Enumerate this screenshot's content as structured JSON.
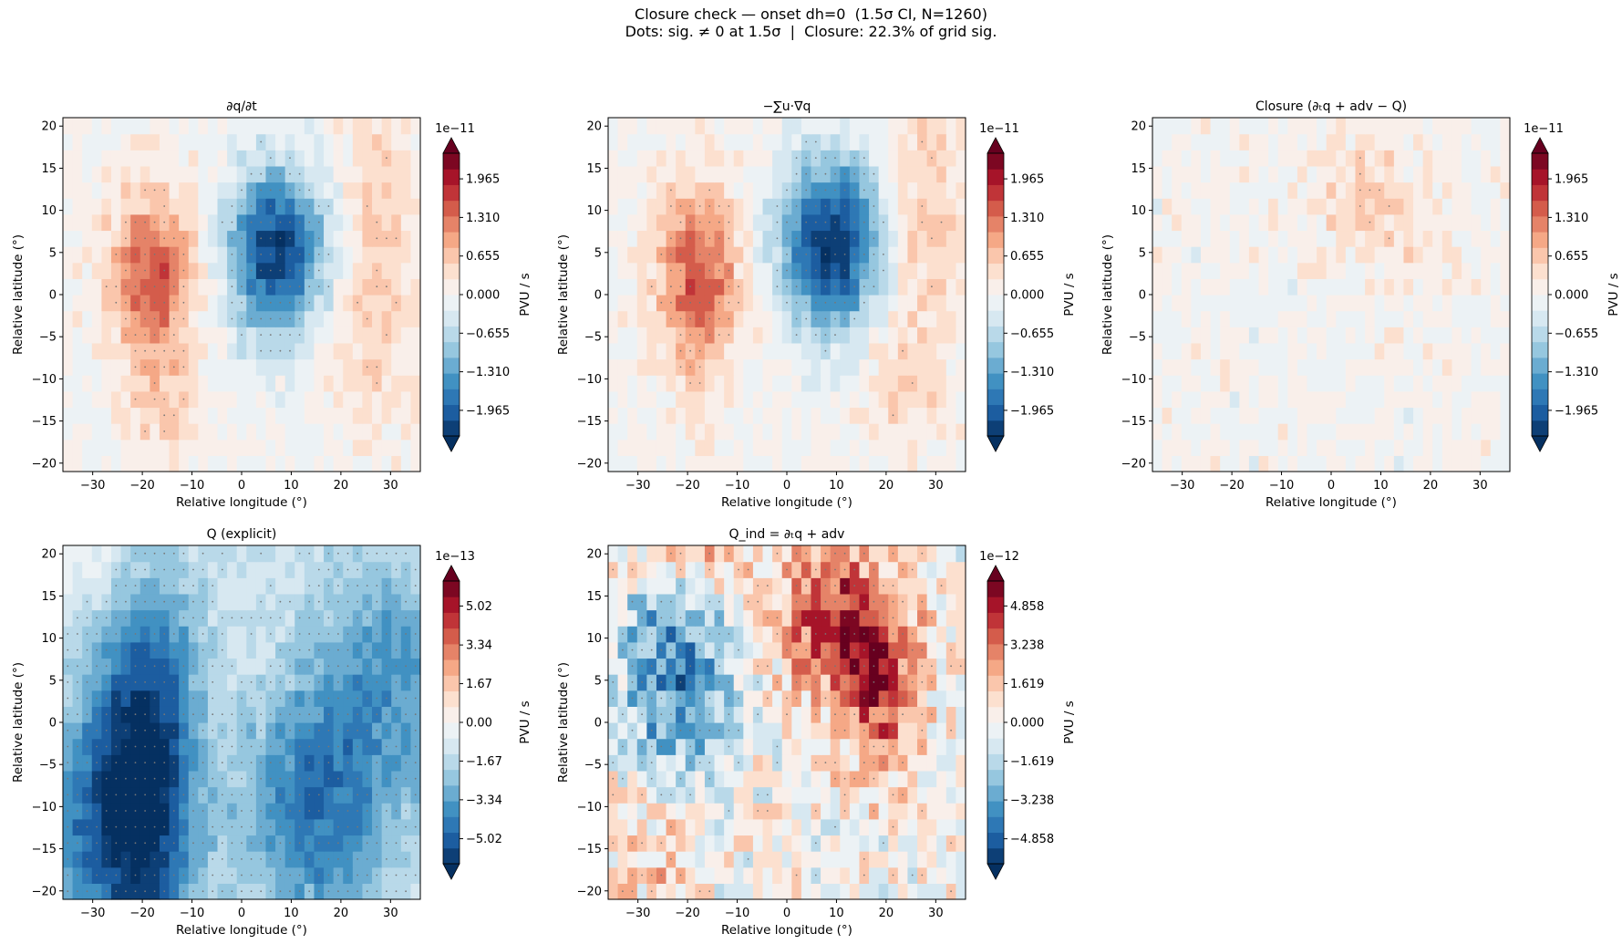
{
  "figure": {
    "title_line1": "Closure check — onset dh=0  (1.5σ CI, N=1260)",
    "title_line2": "Dots: sig. ≠ 0 at 1.5σ  |  Closure: 22.3% of grid sig."
  },
  "colormap": {
    "name": "RdBu_r",
    "stops": [
      "#053061",
      "#2166ac",
      "#4393c3",
      "#92c5de",
      "#d1e5f0",
      "#f7f7f7",
      "#fddbc7",
      "#f4a582",
      "#d6604d",
      "#b2182b",
      "#67001f"
    ]
  },
  "chart_data": [
    {
      "type": "heatmap",
      "title": "∂q/∂t",
      "xlabel": "Relative longitude (°)",
      "ylabel": "Relative latitude (°)",
      "xlim": [
        -36,
        36
      ],
      "ylim": [
        -21,
        21
      ],
      "xticks": [
        -30,
        -20,
        -10,
        0,
        10,
        20,
        30
      ],
      "yticks": [
        -20,
        -15,
        -10,
        -5,
        0,
        5,
        10,
        15,
        20
      ],
      "colorbar": {
        "label": "PVU / s",
        "scale_label": "1e−11",
        "vmin": -2.4,
        "vmax": 2.4,
        "ticks": [
          1.965,
          1.31,
          0.655,
          0.0,
          -0.655,
          -1.31,
          -1.965
        ],
        "tick_labels": [
          "1.965",
          "1.310",
          "0.655",
          "0.000",
          "−0.655",
          "−1.310",
          "−1.965"
        ],
        "extend": "both"
      },
      "features": [
        {
          "kind": "positive",
          "lon": -18,
          "lat": 2,
          "slon": 6,
          "slat": 7,
          "amp": 1.6
        },
        {
          "kind": "negative",
          "lon": 7,
          "lat": 5,
          "slon": 7,
          "slat": 7,
          "amp": -2.3
        },
        {
          "kind": "positive",
          "lon": 28,
          "lat": 8,
          "slon": 6,
          "slat": 10,
          "amp": 0.6
        },
        {
          "kind": "positive",
          "lon": -15,
          "lat": -14,
          "slon": 5,
          "slat": 5,
          "amp": 0.5
        },
        {
          "kind": "positive",
          "lon": 24,
          "lat": -8,
          "slon": 6,
          "slat": 6,
          "amp": 0.4
        }
      ],
      "noise": 0.25
    },
    {
      "type": "heatmap",
      "title": "−∑u·∇q",
      "xlabel": "Relative longitude (°)",
      "ylabel": "Relative latitude (°)",
      "xlim": [
        -36,
        36
      ],
      "ylim": [
        -21,
        21
      ],
      "xticks": [
        -30,
        -20,
        -10,
        0,
        10,
        20,
        30
      ],
      "yticks": [
        -20,
        -15,
        -10,
        -5,
        0,
        5,
        10,
        15,
        20
      ],
      "colorbar": {
        "label": "PVU / s",
        "scale_label": "1e−11",
        "vmin": -2.4,
        "vmax": 2.4,
        "ticks": [
          1.965,
          1.31,
          0.655,
          0.0,
          -0.655,
          -1.31,
          -1.965
        ],
        "tick_labels": [
          "1.965",
          "1.310",
          "0.655",
          "0.000",
          "−0.655",
          "−1.310",
          "−1.965"
        ],
        "extend": "both"
      },
      "features": [
        {
          "kind": "positive",
          "lon": -18,
          "lat": 2,
          "slon": 6,
          "slat": 8,
          "amp": 1.5
        },
        {
          "kind": "negative",
          "lon": 9,
          "lat": 6,
          "slon": 7,
          "slat": 7,
          "amp": -2.5
        },
        {
          "kind": "positive",
          "lon": 28,
          "lat": 10,
          "slon": 6,
          "slat": 9,
          "amp": 0.6
        },
        {
          "kind": "positive",
          "lon": 24,
          "lat": -10,
          "slon": 6,
          "slat": 6,
          "amp": 0.5
        }
      ],
      "noise": 0.25
    },
    {
      "type": "heatmap",
      "title": "Closure (∂ₜq + adv − Q)",
      "xlabel": "Relative longitude (°)",
      "ylabel": "Relative latitude (°)",
      "xlim": [
        -36,
        36
      ],
      "ylim": [
        -21,
        21
      ],
      "xticks": [
        -30,
        -20,
        -10,
        0,
        10,
        20,
        30
      ],
      "yticks": [
        -20,
        -15,
        -10,
        -5,
        0,
        5,
        10,
        15,
        20
      ],
      "colorbar": {
        "label": "PVU / s",
        "scale_label": "1e−11",
        "vmin": -2.4,
        "vmax": 2.4,
        "ticks": [
          1.965,
          1.31,
          0.655,
          0.0,
          -0.655,
          -1.31,
          -1.965
        ],
        "tick_labels": [
          "1.965",
          "1.310",
          "0.655",
          "0.000",
          "−0.655",
          "−1.310",
          "−1.965"
        ],
        "extend": "both"
      },
      "features": [
        {
          "kind": "positive",
          "lon": 5,
          "lat": 13,
          "slon": 8,
          "slat": 5,
          "amp": 0.4
        },
        {
          "kind": "positive",
          "lon": 15,
          "lat": 6,
          "slon": 8,
          "slat": 6,
          "amp": 0.25
        }
      ],
      "noise": 0.28
    },
    {
      "type": "heatmap",
      "title": "Q (explicit)",
      "xlabel": "Relative longitude (°)",
      "ylabel": "Relative latitude (°)",
      "xlim": [
        -36,
        36
      ],
      "ylim": [
        -21,
        21
      ],
      "xticks": [
        -30,
        -20,
        -10,
        0,
        10,
        20,
        30
      ],
      "yticks": [
        -20,
        -15,
        -10,
        -5,
        0,
        5,
        10,
        15,
        20
      ],
      "colorbar": {
        "label": "PVU / s",
        "scale_label": "1e−13",
        "vmin": -6.1,
        "vmax": 6.1,
        "ticks": [
          5.02,
          3.34,
          1.67,
          0.0,
          -1.67,
          -3.34,
          -5.02
        ],
        "tick_labels": [
          "5.02",
          "3.34",
          "1.67",
          "0.00",
          "−1.67",
          "−3.34",
          "−5.02"
        ],
        "extend": "both"
      },
      "features": [
        {
          "kind": "negative",
          "lon": -19,
          "lat": -6,
          "slon": 7,
          "slat": 16,
          "amp": -5.2
        },
        {
          "kind": "negative",
          "lon": 15,
          "lat": -10,
          "slon": 10,
          "slat": 10,
          "amp": -3.3
        },
        {
          "kind": "negative",
          "lon": -30,
          "lat": -12,
          "slon": 8,
          "slat": 10,
          "amp": -2.6
        },
        {
          "kind": "negative",
          "lon": 30,
          "lat": 6,
          "slon": 10,
          "slat": 10,
          "amp": -2.2
        },
        {
          "kind": "positive",
          "lon": -30,
          "lat": 20,
          "slon": 10,
          "slat": 4,
          "amp": 1.2
        }
      ],
      "offset": -1.2,
      "noise": 0.55
    },
    {
      "type": "heatmap",
      "title": "Q_ind = ∂ₜq + adv",
      "xlabel": "Relative longitude (°)",
      "ylabel": "Relative latitude (°)",
      "xlim": [
        -36,
        36
      ],
      "ylim": [
        -21,
        21
      ],
      "xticks": [
        -30,
        -20,
        -10,
        0,
        10,
        20,
        30
      ],
      "yticks": [
        -20,
        -15,
        -10,
        -5,
        0,
        5,
        10,
        15,
        20
      ],
      "colorbar": {
        "label": "PVU / s",
        "scale_label": "1e−12",
        "vmin": -5.9,
        "vmax": 5.9,
        "ticks": [
          4.858,
          3.238,
          1.619,
          0.0,
          -1.619,
          -3.238,
          -4.858
        ],
        "tick_labels": [
          "4.858",
          "3.238",
          "1.619",
          "0.000",
          "−1.619",
          "−3.238",
          "−4.858"
        ],
        "extend": "both"
      },
      "features": [
        {
          "kind": "negative",
          "lon": -22,
          "lat": 5,
          "slon": 8,
          "slat": 10,
          "amp": -3.8
        },
        {
          "kind": "positive",
          "lon": 10,
          "lat": 12,
          "slon": 8,
          "slat": 6,
          "amp": 4.8
        },
        {
          "kind": "positive",
          "lon": 19,
          "lat": 3,
          "slon": 6,
          "slat": 7,
          "amp": 3.6
        },
        {
          "kind": "positive",
          "lon": -20,
          "lat": 20,
          "slon": 10,
          "slat": 3,
          "amp": 2.5
        },
        {
          "kind": "positive",
          "lon": -25,
          "lat": -14,
          "slon": 8,
          "slat": 6,
          "amp": 1.6
        }
      ],
      "noise": 1.7
    }
  ]
}
